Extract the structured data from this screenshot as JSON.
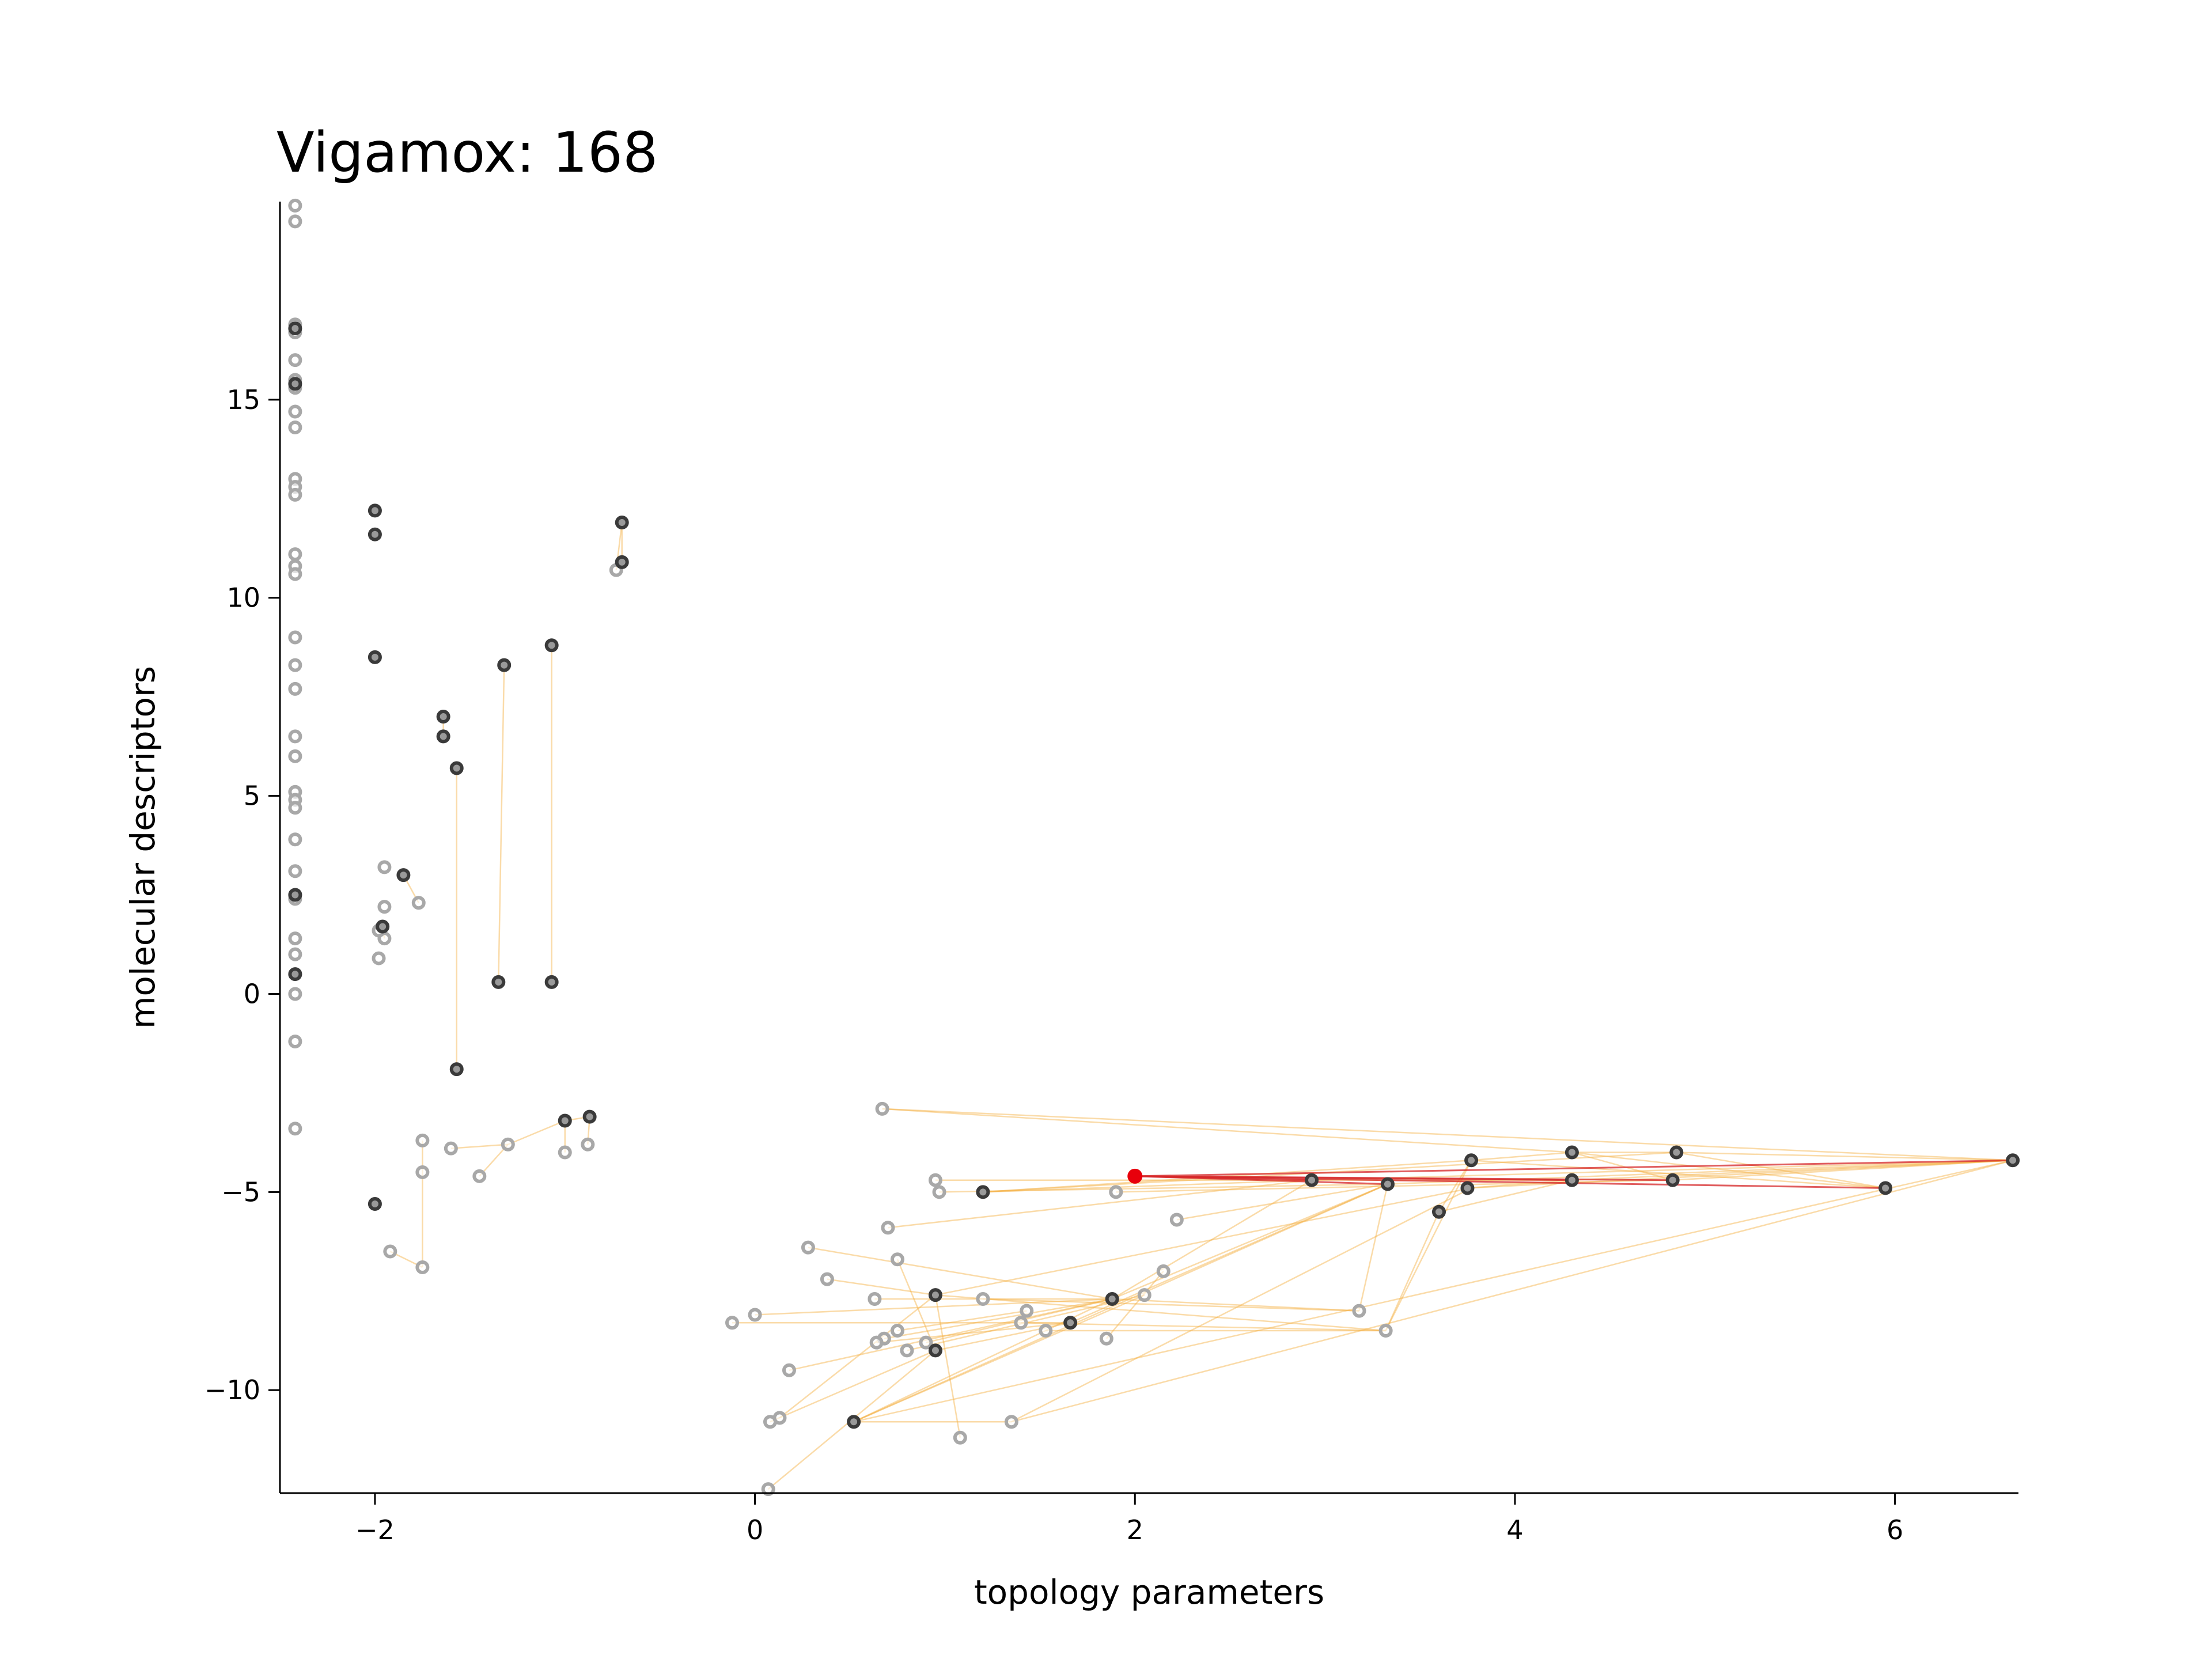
{
  "chart_data": {
    "type": "scatter",
    "title": "Vigamox: 168",
    "xlabel": "topology parameters",
    "ylabel": "molecular descriptors",
    "xlim": [
      -2.5,
      6.65
    ],
    "ylim": [
      -12.6,
      20.0
    ],
    "xticks": [
      -2,
      0,
      2,
      4,
      6
    ],
    "yticks": [
      -10,
      -5,
      0,
      5,
      10,
      15
    ],
    "xtick_labels": [
      "−2",
      "0",
      "2",
      "4",
      "6"
    ],
    "ytick_labels": [
      "−10",
      "−5",
      "0",
      "5",
      "10",
      "15"
    ],
    "grid": false,
    "colors": {
      "point_light": "#a8a8a8",
      "point_dark": "#3a3a3a",
      "edge": "#f5b041",
      "edge_strong": "#e6a020",
      "highlight": "#e8000b",
      "highlight_edge": "#d62728"
    },
    "highlight_point": {
      "x": 2.0,
      "y": -4.6
    },
    "points_light": [
      [
        -2.42,
        19.9
      ],
      [
        -2.42,
        19.5
      ],
      [
        -2.42,
        16.9
      ],
      [
        -2.42,
        16.7
      ],
      [
        -2.42,
        16.0
      ],
      [
        -2.42,
        15.5
      ],
      [
        -2.42,
        15.3
      ],
      [
        -2.42,
        14.7
      ],
      [
        -2.42,
        14.3
      ],
      [
        -2.42,
        13.0
      ],
      [
        -2.42,
        12.8
      ],
      [
        -2.42,
        12.6
      ],
      [
        -2.42,
        11.1
      ],
      [
        -2.42,
        10.8
      ],
      [
        -2.42,
        10.6
      ],
      [
        -2.42,
        9.0
      ],
      [
        -2.42,
        8.3
      ],
      [
        -2.42,
        7.7
      ],
      [
        -2.42,
        6.5
      ],
      [
        -2.42,
        6.0
      ],
      [
        -2.42,
        5.1
      ],
      [
        -2.42,
        4.9
      ],
      [
        -2.42,
        4.7
      ],
      [
        -2.42,
        3.9
      ],
      [
        -2.42,
        3.1
      ],
      [
        -2.42,
        2.5
      ],
      [
        -2.42,
        2.4
      ],
      [
        -2.42,
        1.4
      ],
      [
        -2.42,
        1.0
      ],
      [
        -2.42,
        0.5
      ],
      [
        -2.42,
        0.0
      ],
      [
        -2.42,
        -1.2
      ],
      [
        -2.42,
        -3.4
      ],
      [
        -1.95,
        3.2
      ],
      [
        -1.95,
        2.2
      ],
      [
        -1.95,
        1.4
      ],
      [
        -1.98,
        1.6
      ],
      [
        -1.98,
        0.9
      ],
      [
        -1.77,
        2.3
      ],
      [
        -1.75,
        -3.7
      ],
      [
        -1.75,
        -4.5
      ],
      [
        -1.75,
        -6.9
      ],
      [
        -1.92,
        -6.5
      ],
      [
        -1.6,
        -3.9
      ],
      [
        -1.45,
        -4.6
      ],
      [
        -1.3,
        -3.8
      ],
      [
        -1.0,
        -4.0
      ],
      [
        -0.88,
        -3.8
      ],
      [
        -0.73,
        10.7
      ],
      [
        0.67,
        -2.9
      ],
      [
        0.95,
        -4.7
      ],
      [
        0.97,
        -5.0
      ],
      [
        0.7,
        -5.9
      ],
      [
        0.75,
        -6.7
      ],
      [
        0.28,
        -6.4
      ],
      [
        0.38,
        -7.2
      ],
      [
        0.63,
        -7.7
      ],
      [
        0.75,
        -8.5
      ],
      [
        0.68,
        -8.7
      ],
      [
        0.64,
        -8.8
      ],
      [
        0.8,
        -9.0
      ],
      [
        0.9,
        -8.8
      ],
      [
        1.2,
        -7.7
      ],
      [
        1.43,
        -8.0
      ],
      [
        1.4,
        -8.3
      ],
      [
        1.53,
        -8.5
      ],
      [
        1.85,
        -8.7
      ],
      [
        2.05,
        -7.6
      ],
      [
        2.15,
        -7.0
      ],
      [
        2.22,
        -5.7
      ],
      [
        1.9,
        -5.0
      ],
      [
        -0.12,
        -8.3
      ],
      [
        0.0,
        -8.1
      ],
      [
        0.18,
        -9.5
      ],
      [
        0.08,
        -10.8
      ],
      [
        0.13,
        -10.7
      ],
      [
        0.07,
        -12.5
      ],
      [
        1.08,
        -11.2
      ],
      [
        1.35,
        -10.8
      ],
      [
        3.18,
        -8.0
      ],
      [
        3.32,
        -8.5
      ]
    ],
    "points_dark": [
      [
        -2.42,
        16.8
      ],
      [
        -2.42,
        15.4
      ],
      [
        -2.42,
        2.5
      ],
      [
        -2.42,
        0.5
      ],
      [
        -2.0,
        12.2
      ],
      [
        -2.0,
        11.6
      ],
      [
        -2.0,
        8.5
      ],
      [
        -2.0,
        -5.3
      ],
      [
        -1.96,
        1.7
      ],
      [
        -1.85,
        3.0
      ],
      [
        -1.64,
        7.0
      ],
      [
        -1.64,
        6.5
      ],
      [
        -1.57,
        5.7
      ],
      [
        -1.57,
        -1.9
      ],
      [
        -1.32,
        8.3
      ],
      [
        -1.35,
        0.3
      ],
      [
        -1.07,
        8.8
      ],
      [
        -1.07,
        0.3
      ],
      [
        -0.7,
        11.9
      ],
      [
        -0.7,
        10.9
      ],
      [
        -1.0,
        -3.2
      ],
      [
        -0.87,
        -3.1
      ],
      [
        1.2,
        -5.0
      ],
      [
        2.93,
        -4.7
      ],
      [
        3.33,
        -4.8
      ],
      [
        3.77,
        -4.2
      ],
      [
        3.75,
        -4.9
      ],
      [
        3.6,
        -5.5
      ],
      [
        4.3,
        -4.0
      ],
      [
        4.3,
        -4.7
      ],
      [
        4.85,
        -4.0
      ],
      [
        4.83,
        -4.7
      ],
      [
        5.95,
        -4.9
      ],
      [
        6.62,
        -4.2
      ],
      [
        0.95,
        -7.6
      ],
      [
        0.95,
        -9.0
      ],
      [
        1.66,
        -8.3
      ],
      [
        1.88,
        -7.7
      ],
      [
        0.52,
        -10.8
      ]
    ],
    "edges": [
      [
        -1.57,
        5.7,
        -1.57,
        -1.9
      ],
      [
        -1.32,
        8.3,
        -1.35,
        0.3
      ],
      [
        -1.07,
        8.8,
        -1.07,
        0.3
      ],
      [
        -0.7,
        11.9,
        -0.7,
        10.9
      ],
      [
        -0.73,
        10.7,
        -0.7,
        11.9
      ],
      [
        -1.64,
        7.0,
        -1.64,
        6.5
      ],
      [
        -1.96,
        1.7,
        -1.95,
        1.4
      ],
      [
        -1.85,
        3.0,
        -1.77,
        2.3
      ],
      [
        -1.75,
        -3.7,
        -1.75,
        -4.5
      ],
      [
        -1.75,
        -4.5,
        -1.75,
        -6.9
      ],
      [
        -1.92,
        -6.5,
        -1.75,
        -6.9
      ],
      [
        -1.45,
        -4.6,
        -1.3,
        -3.8
      ],
      [
        -1.3,
        -3.8,
        -1.0,
        -3.2
      ],
      [
        -1.0,
        -3.2,
        -0.87,
        -3.1
      ],
      [
        -1.0,
        -3.2,
        -1.0,
        -4.0
      ],
      [
        -0.88,
        -3.8,
        -0.87,
        -3.1
      ],
      [
        -1.6,
        -3.9,
        -1.3,
        -3.8
      ],
      [
        0.67,
        -2.9,
        6.62,
        -4.2
      ],
      [
        0.67,
        -2.9,
        4.3,
        -4.0
      ],
      [
        1.2,
        -5.0,
        2.93,
        -4.7
      ],
      [
        1.2,
        -5.0,
        3.77,
        -4.2
      ],
      [
        1.2,
        -5.0,
        4.85,
        -4.0
      ],
      [
        0.95,
        -4.7,
        4.3,
        -4.7
      ],
      [
        0.97,
        -5.0,
        3.33,
        -4.8
      ],
      [
        1.9,
        -5.0,
        4.83,
        -4.7
      ],
      [
        2.93,
        -4.7,
        6.62,
        -4.2
      ],
      [
        3.33,
        -4.8,
        6.62,
        -4.2
      ],
      [
        3.77,
        -4.2,
        5.95,
        -4.9
      ],
      [
        3.75,
        -4.9,
        6.62,
        -4.2
      ],
      [
        4.3,
        -4.0,
        4.83,
        -4.7
      ],
      [
        4.3,
        -4.0,
        4.85,
        -4.0
      ],
      [
        4.3,
        -4.0,
        5.95,
        -4.9
      ],
      [
        4.85,
        -4.0,
        6.62,
        -4.2
      ],
      [
        4.83,
        -4.7,
        6.62,
        -4.2
      ],
      [
        4.3,
        -4.7,
        6.62,
        -4.2
      ],
      [
        3.77,
        -4.2,
        4.3,
        -4.0
      ],
      [
        3.75,
        -4.9,
        4.3,
        -4.7
      ],
      [
        4.85,
        -4.0,
        5.95,
        -4.9
      ],
      [
        3.6,
        -5.5,
        3.77,
        -4.2
      ],
      [
        3.6,
        -5.5,
        4.3,
        -4.7
      ],
      [
        2.22,
        -5.7,
        3.33,
        -4.8
      ],
      [
        0.7,
        -5.9,
        2.93,
        -4.7
      ],
      [
        1.88,
        -7.7,
        3.33,
        -4.8
      ],
      [
        1.88,
        -7.7,
        2.93,
        -4.7
      ],
      [
        1.66,
        -8.3,
        3.33,
        -4.8
      ],
      [
        0.95,
        -7.6,
        3.77,
        -4.9
      ],
      [
        0.52,
        -10.8,
        3.33,
        -4.8
      ],
      [
        0.52,
        -10.8,
        6.62,
        -4.2
      ],
      [
        1.35,
        -10.8,
        3.77,
        -4.9
      ],
      [
        1.35,
        -10.8,
        6.62,
        -4.2
      ],
      [
        3.18,
        -8.0,
        3.33,
        -4.8
      ],
      [
        3.32,
        -8.5,
        3.6,
        -5.5
      ],
      [
        3.32,
        -8.5,
        3.77,
        -4.2
      ],
      [
        0.28,
        -6.4,
        1.88,
        -7.7
      ],
      [
        0.38,
        -7.2,
        0.95,
        -7.6
      ],
      [
        0.63,
        -7.7,
        1.88,
        -7.7
      ],
      [
        0.64,
        -8.8,
        1.66,
        -8.3
      ],
      [
        0.68,
        -8.7,
        1.88,
        -7.7
      ],
      [
        0.75,
        -8.5,
        1.43,
        -8.0
      ],
      [
        0.8,
        -9.0,
        2.05,
        -7.6
      ],
      [
        0.9,
        -8.8,
        1.88,
        -7.7
      ],
      [
        0.95,
        -9.0,
        1.66,
        -8.3
      ],
      [
        1.2,
        -7.7,
        3.18,
        -8.0
      ],
      [
        1.4,
        -8.3,
        3.32,
        -8.5
      ],
      [
        1.53,
        -8.5,
        3.32,
        -8.5
      ],
      [
        1.85,
        -8.7,
        2.15,
        -7.0
      ],
      [
        -0.12,
        -8.3,
        1.66,
        -8.3
      ],
      [
        0.0,
        -8.1,
        1.88,
        -7.7
      ],
      [
        0.18,
        -9.5,
        1.88,
        -7.7
      ],
      [
        0.08,
        -10.8,
        0.95,
        -9.0
      ],
      [
        0.13,
        -10.7,
        0.95,
        -7.6
      ],
      [
        0.52,
        -10.8,
        1.35,
        -10.8
      ],
      [
        0.52,
        -10.8,
        1.88,
        -7.7
      ],
      [
        1.08,
        -11.2,
        0.95,
        -7.6
      ],
      [
        0.07,
        -12.5,
        0.95,
        -9.0
      ],
      [
        0.75,
        -6.7,
        0.95,
        -9.0
      ],
      [
        0.95,
        -7.6,
        3.32,
        -8.5
      ],
      [
        1.88,
        -7.7,
        3.18,
        -8.0
      ],
      [
        0.52,
        -10.8,
        2.05,
        -7.6
      ]
    ],
    "highlight_edges": [
      [
        2.0,
        -4.6,
        4.83,
        -4.7
      ],
      [
        2.0,
        -4.6,
        5.95,
        -4.9
      ],
      [
        2.0,
        -4.6,
        6.62,
        -4.2
      ],
      [
        2.0,
        -4.6,
        3.33,
        -4.8
      ],
      [
        2.0,
        -4.6,
        2.93,
        -4.7
      ],
      [
        2.0,
        -4.6,
        4.3,
        -4.7
      ]
    ]
  }
}
